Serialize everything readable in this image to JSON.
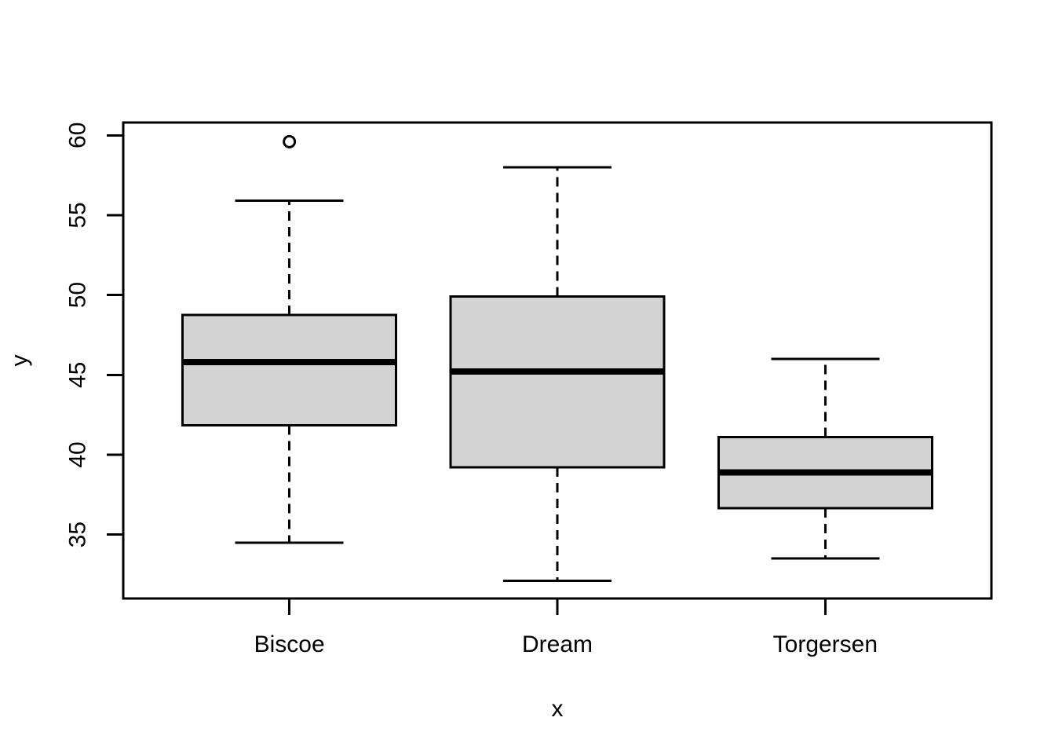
{
  "figure": {
    "background_color": "#ffffff",
    "axis_color": "#000000",
    "box_fill_color": "#d3d3d3",
    "box_border_color": "#000000",
    "median_color": "#000000",
    "outlier_color": "#000000"
  },
  "chart_data": {
    "type": "boxplot",
    "title": "",
    "xlabel": "x",
    "ylabel": "y",
    "categories": [
      "Biscoe",
      "Dream",
      "Torgersen"
    ],
    "y_ticks": [
      35,
      40,
      45,
      50,
      55,
      60
    ],
    "ylim": [
      31.0,
      60.8
    ],
    "xlim": [
      0.38,
      3.62
    ],
    "grid": false,
    "legend": false,
    "series": [
      {
        "name": "Biscoe",
        "x": 1,
        "whisker_low": 34.5,
        "q1": 41.85,
        "median": 45.8,
        "q3": 48.75,
        "whisker_high": 55.9,
        "outliers": [
          59.6
        ]
      },
      {
        "name": "Dream",
        "x": 2,
        "whisker_low": 32.1,
        "q1": 39.2,
        "median": 45.2,
        "q3": 49.9,
        "whisker_high": 58.0,
        "outliers": []
      },
      {
        "name": "Torgersen",
        "x": 3,
        "whisker_low": 33.5,
        "q1": 36.65,
        "median": 38.9,
        "q3": 41.1,
        "whisker_high": 46.0,
        "outliers": []
      }
    ]
  }
}
